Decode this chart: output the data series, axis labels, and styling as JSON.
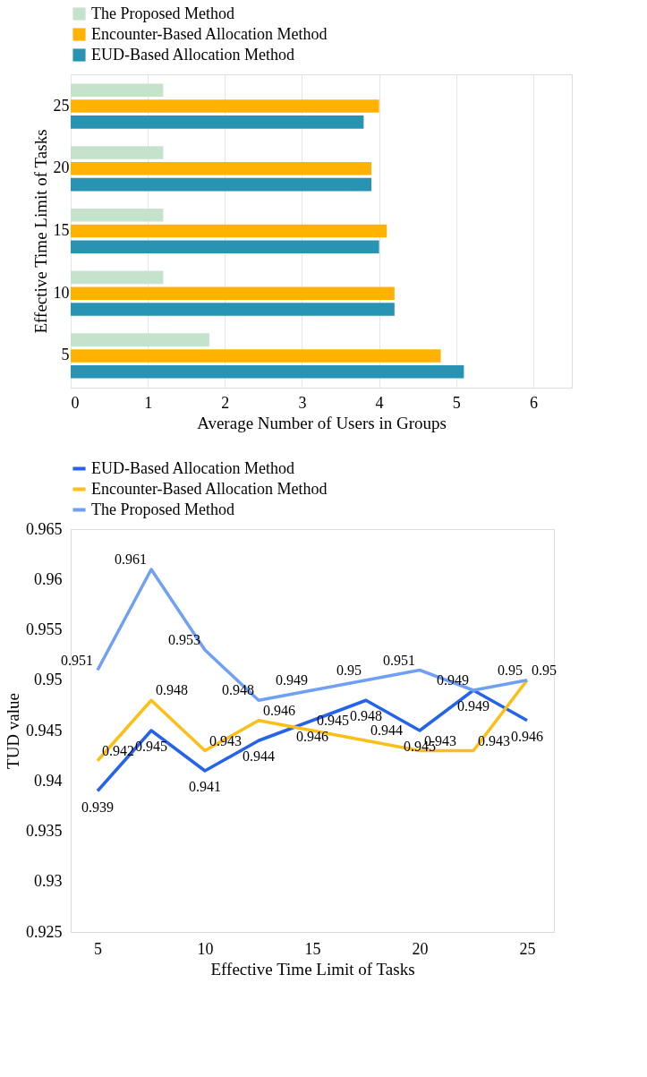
{
  "chart_data": [
    {
      "type": "bar",
      "orientation": "horizontal",
      "categories": [
        "25",
        "20",
        "15",
        "10",
        "5"
      ],
      "xlabel": "Average Number of Users in Groups",
      "ylabel": "Effective Time Limit of Tasks",
      "xlim": [
        0,
        6.5
      ],
      "xticks": [
        0,
        1,
        2,
        3,
        4,
        5,
        6
      ],
      "grid": "x",
      "legend": "top",
      "series": [
        {
          "name": "The Proposed Method",
          "color": "#c5e3cc",
          "values": [
            1.2,
            1.2,
            1.2,
            1.2,
            1.8
          ]
        },
        {
          "name": "Encounter-Based Allocation Method",
          "color": "#ffb300",
          "values": [
            4.0,
            3.9,
            4.1,
            4.2,
            4.8
          ]
        },
        {
          "name": "EUD-Based Allocation Method",
          "color": "#2993b3",
          "values": [
            3.8,
            3.9,
            4.0,
            4.2,
            5.1
          ]
        }
      ]
    },
    {
      "type": "line",
      "x": [
        5,
        7.5,
        10,
        12.5,
        15,
        17.5,
        20,
        22.5,
        25
      ],
      "xlabel": "Effective Time Limit of Tasks",
      "ylabel": "TUD value",
      "xlim": [
        3.75,
        26.25
      ],
      "xticks": [
        5,
        10,
        15,
        20,
        25
      ],
      "ylim": [
        0.925,
        0.965
      ],
      "yticks": [
        0.925,
        0.93,
        0.935,
        0.94,
        0.945,
        0.95,
        0.955,
        0.96,
        0.965
      ],
      "data_labels": true,
      "legend": "top",
      "marker": "none",
      "line_style": "solid",
      "series": [
        {
          "name": "EUD-Based Allocation Method",
          "color": "#2563eb",
          "values": [
            0.939,
            0.945,
            0.941,
            0.944,
            0.946,
            0.948,
            0.945,
            0.949,
            0.946
          ]
        },
        {
          "name": "Encounter-Based Allocation Method",
          "color": "#fbbf16",
          "values": [
            0.942,
            0.948,
            0.943,
            0.946,
            0.945,
            0.944,
            0.943,
            0.943,
            0.95
          ]
        },
        {
          "name": "The Proposed Method",
          "color": "#6fa0f4",
          "values": [
            0.951,
            0.961,
            0.953,
            0.948,
            0.949,
            0.95,
            0.951,
            0.949,
            0.95
          ]
        }
      ]
    }
  ]
}
